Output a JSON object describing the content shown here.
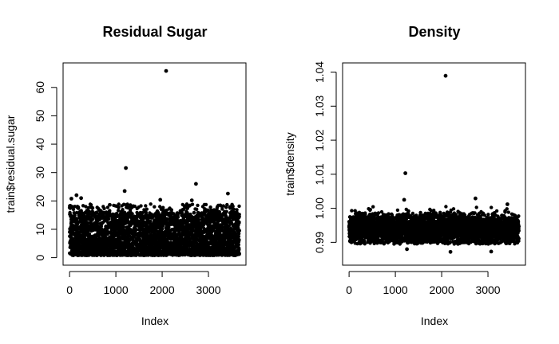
{
  "chart_data": [
    {
      "type": "scatter",
      "title": "Residual Sugar",
      "xlabel": "Index",
      "ylabel": "train$residual.sugar",
      "xlim": [
        0,
        3700
      ],
      "ylim": [
        0,
        66
      ],
      "xticks": [
        "0",
        "1000",
        "2000",
        "3000"
      ],
      "yticks": [
        "0",
        "10",
        "20",
        "30",
        "40",
        "50",
        "60"
      ],
      "n_points": 3670,
      "band": {
        "low": 0.8,
        "typical_high": 16,
        "max_band": 19
      },
      "outliers": [
        {
          "x": 2085,
          "y": 65.8
        },
        {
          "x": 1215,
          "y": 31.6
        },
        {
          "x": 2730,
          "y": 26.0
        },
        {
          "x": 1190,
          "y": 23.5
        },
        {
          "x": 3420,
          "y": 22.6
        },
        {
          "x": 150,
          "y": 22.0
        },
        {
          "x": 250,
          "y": 21.0
        },
        {
          "x": 1960,
          "y": 20.4
        },
        {
          "x": 2640,
          "y": 20.2
        },
        {
          "x": 40,
          "y": 20.8
        }
      ],
      "grid": false,
      "legend": "none",
      "point_color": "#000000"
    },
    {
      "type": "scatter",
      "title": "Density",
      "xlabel": "Index",
      "ylabel": "train$density",
      "xlim": [
        0,
        3700
      ],
      "ylim": [
        0.9855,
        1.0405
      ],
      "xticks": [
        "0",
        "1000",
        "2000",
        "3000"
      ],
      "yticks": [
        "0.99",
        "1.00",
        "1.01",
        "1.02",
        "1.03",
        "1.04"
      ],
      "n_points": 3670,
      "band": {
        "low": 0.9895,
        "typical_high": 0.9985,
        "max_band": 1.0005
      },
      "outliers": [
        {
          "x": 2085,
          "y": 1.0389
        },
        {
          "x": 1215,
          "y": 1.0103
        },
        {
          "x": 2730,
          "y": 1.0029
        },
        {
          "x": 1190,
          "y": 1.0025
        },
        {
          "x": 3420,
          "y": 1.0012
        },
        {
          "x": 1250,
          "y": 0.988
        },
        {
          "x": 2190,
          "y": 0.9872
        },
        {
          "x": 3070,
          "y": 0.9873
        }
      ],
      "grid": false,
      "legend": "none",
      "point_color": "#000000"
    }
  ]
}
